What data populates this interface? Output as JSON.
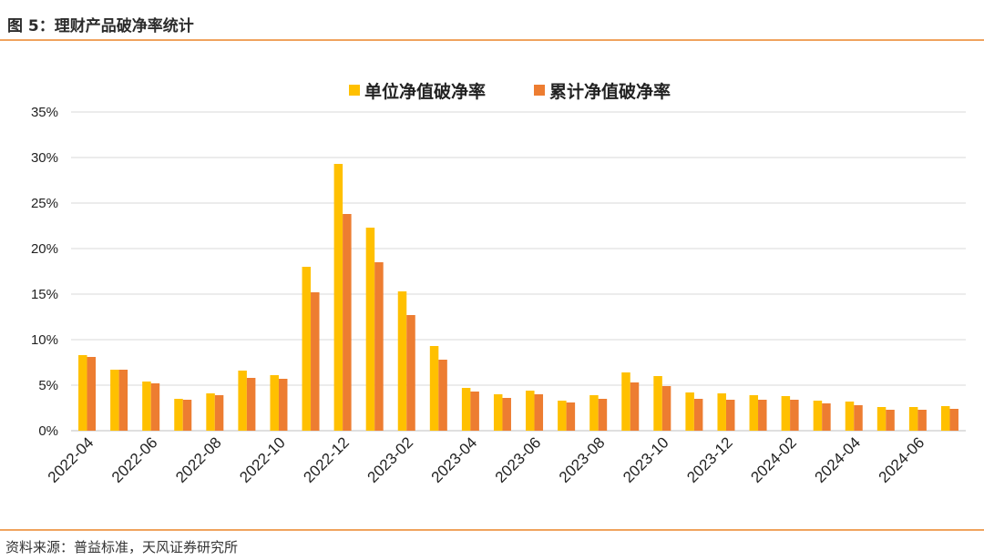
{
  "figure": {
    "title": "图 5：理财产品破净率统计",
    "source": "资料来源：普益标准，天风证券研究所"
  },
  "colors": {
    "series1": "#FFC000",
    "series2": "#ED7D31",
    "grid": "#D9D9D9",
    "rule": "#F0A35E"
  },
  "chart_data": {
    "type": "bar",
    "title": "",
    "xlabel": "",
    "ylabel": "",
    "ylim": [
      0,
      0.35
    ],
    "yticks": [
      "0%",
      "5%",
      "10%",
      "15%",
      "20%",
      "25%",
      "30%",
      "35%"
    ],
    "grid": true,
    "legend": "top-center",
    "categories": [
      "2022-04",
      "2022-05",
      "2022-06",
      "2022-07",
      "2022-08",
      "2022-09",
      "2022-10",
      "2022-11",
      "2022-12",
      "2023-01",
      "2023-02",
      "2023-03",
      "2023-04",
      "2023-05",
      "2023-06",
      "2023-07",
      "2023-08",
      "2023-09",
      "2023-10",
      "2023-11",
      "2023-12",
      "2024-01",
      "2024-02",
      "2024-03",
      "2024-04",
      "2024-05",
      "2024-06",
      "2024-07"
    ],
    "xtick_labels": [
      "2022-04",
      "2022-06",
      "2022-08",
      "2022-10",
      "2022-12",
      "2023-02",
      "2023-04",
      "2023-06",
      "2023-08",
      "2023-10",
      "2023-12",
      "2024-02",
      "2024-04",
      "2024-06"
    ],
    "series": [
      {
        "name": "单位净值破净率",
        "values": [
          0.083,
          0.067,
          0.054,
          0.035,
          0.041,
          0.066,
          0.061,
          0.18,
          0.293,
          0.223,
          0.153,
          0.093,
          0.047,
          0.04,
          0.044,
          0.033,
          0.039,
          0.064,
          0.06,
          0.042,
          0.041,
          0.039,
          0.038,
          0.033,
          0.032,
          0.026,
          0.026,
          0.027
        ]
      },
      {
        "name": "累计净值破净率",
        "values": [
          0.081,
          0.067,
          0.052,
          0.034,
          0.039,
          0.058,
          0.057,
          0.152,
          0.238,
          0.185,
          0.127,
          0.078,
          0.043,
          0.036,
          0.04,
          0.031,
          0.035,
          0.053,
          0.049,
          0.035,
          0.034,
          0.034,
          0.034,
          0.03,
          0.028,
          0.023,
          0.023,
          0.024
        ]
      }
    ]
  }
}
